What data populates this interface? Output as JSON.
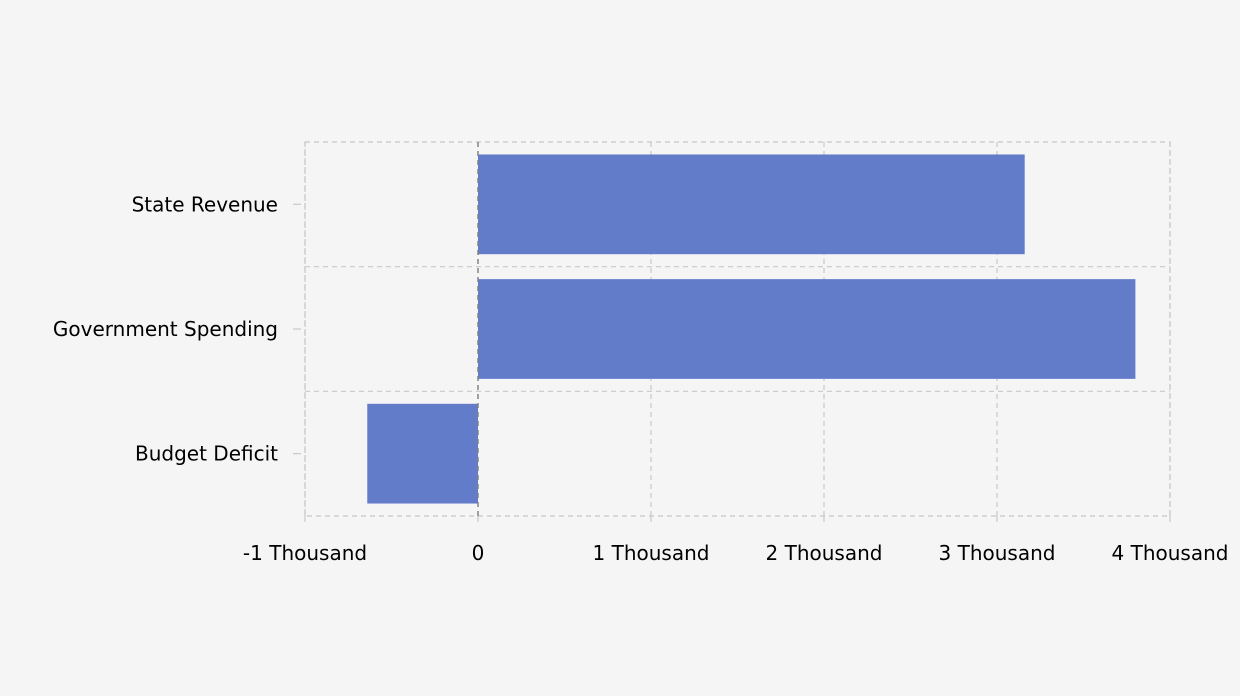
{
  "chart_data": {
    "type": "bar",
    "orientation": "horizontal",
    "categories": [
      "State Revenue",
      "Government Spending",
      "Budget Deficit"
    ],
    "values": [
      3160,
      3800,
      -640
    ],
    "xlim": [
      -1000,
      4000
    ],
    "xticks": [
      -1000,
      0,
      1000,
      2000,
      3000,
      4000
    ],
    "xtick_labels": [
      "-1 Thousand",
      "0",
      "1 Thousand",
      "2 Thousand",
      "3 Thousand",
      "4 Thousand"
    ],
    "title": "",
    "xlabel": "",
    "ylabel": "",
    "grid": true,
    "bar_color": "#6079c9",
    "grid_color": "#c8c8c8",
    "zero_line_color": "#808080"
  }
}
